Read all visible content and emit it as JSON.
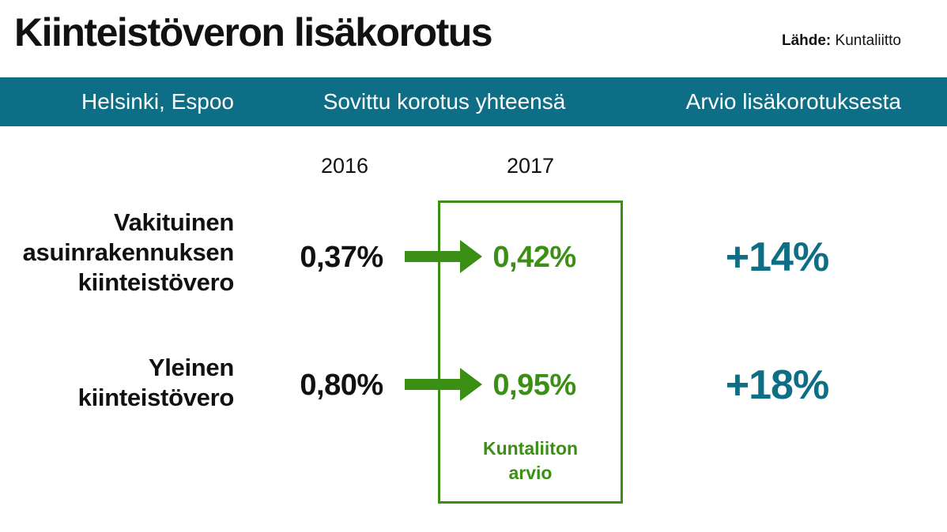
{
  "title": "Kiinteistöveron lisäkorotus",
  "source": {
    "label": "Lähde:",
    "value": "Kuntaliitto"
  },
  "header": {
    "col1": "Helsinki, Espoo",
    "col2": "Sovittu korotus yhteensä",
    "col3": "Arvio lisäkorotuksesta"
  },
  "years": [
    "2016",
    "2017"
  ],
  "rows": [
    {
      "label_lines": [
        "Vakituinen",
        "asuinrakennuksen",
        "kiinteistövero"
      ],
      "value_2016": "0,37%",
      "value_2017": "0,42%",
      "increase": "+14%"
    },
    {
      "label_lines": [
        "Yleinen",
        "kiinteistövero"
      ],
      "value_2016": "0,80%",
      "value_2017": "0,95%",
      "increase": "+18%"
    }
  ],
  "estimate_note_lines": [
    "Kuntaliiton",
    "arvio"
  ],
  "icons": {
    "arrow": "arrow-right-icon"
  },
  "colors": {
    "header_band": "#0e6e85",
    "header_text": "#ffffff",
    "green": "#3a8f14",
    "teal": "#0e6e85",
    "text": "#111111",
    "background": "#ffffff"
  }
}
